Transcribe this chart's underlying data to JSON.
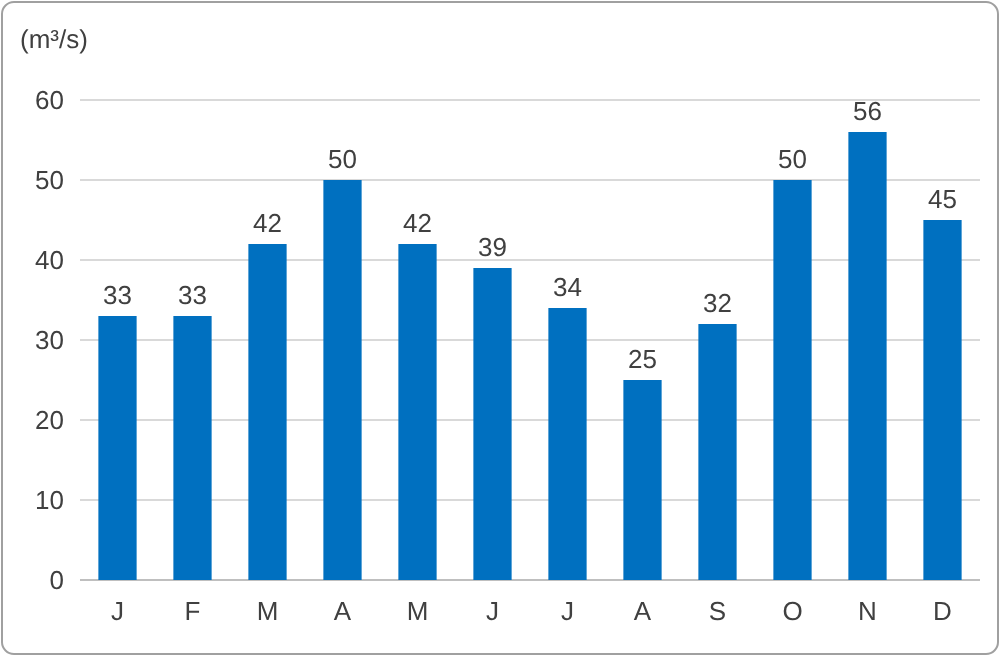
{
  "chart_data": {
    "type": "bar",
    "ylabel": "(m³/s)",
    "categories": [
      "J",
      "F",
      "M",
      "A",
      "M",
      "J",
      "J",
      "A",
      "S",
      "O",
      "N",
      "D"
    ],
    "values": [
      33,
      33,
      42,
      50,
      42,
      39,
      34,
      25,
      32,
      50,
      56,
      45
    ],
    "color": "#0070c0",
    "ylim": [
      0,
      60
    ],
    "yticks": [
      0,
      10,
      20,
      30,
      40,
      50,
      60
    ],
    "grid": "y",
    "data_labels": true
  }
}
